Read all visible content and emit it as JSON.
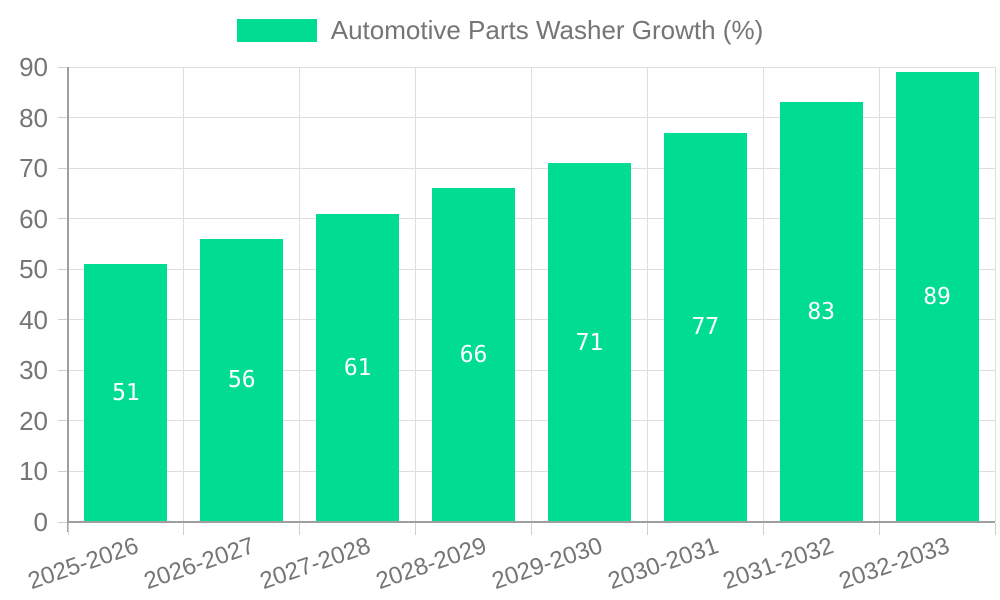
{
  "legend": {
    "label": "Automotive Parts Washer Growth (%)"
  },
  "colors": {
    "bar": "#00dc92",
    "axis_line": "#9e9e9e",
    "gridline": "#dedede",
    "tick": "#cfcfcf",
    "axis_text": "#757575",
    "value_text": "#ffffff",
    "background": "#ffffff"
  },
  "chart_data": {
    "type": "bar",
    "title": "Automotive Parts Washer Growth (%)",
    "categories": [
      "2025-2026",
      "2026-2027",
      "2027-2028",
      "2028-2029",
      "2029-2030",
      "2030-2031",
      "2031-2032",
      "2032-2033"
    ],
    "values": [
      51,
      56,
      61,
      66,
      71,
      77,
      83,
      89
    ],
    "xlabel": "",
    "ylabel": "",
    "ylim": [
      0,
      90
    ],
    "ytick_step": 10,
    "y_tick_labels": [
      "0",
      "10",
      "20",
      "30",
      "40",
      "50",
      "60",
      "70",
      "80",
      "90"
    ],
    "grid": true,
    "legend_position": "top-center",
    "value_label_position": "inside-center",
    "x_label_rotation_deg": -19
  }
}
